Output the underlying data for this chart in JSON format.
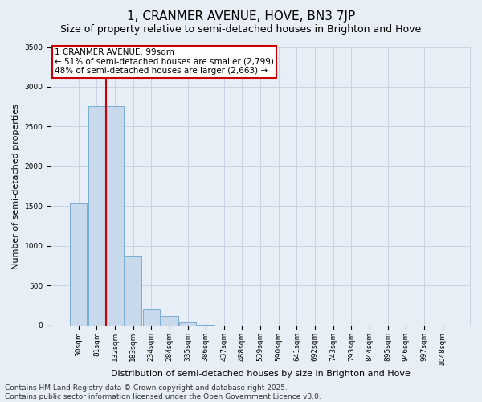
{
  "title": "1, CRANMER AVENUE, HOVE, BN3 7JP",
  "subtitle": "Size of property relative to semi-detached houses in Brighton and Hove",
  "xlabel": "Distribution of semi-detached houses by size in Brighton and Hove",
  "ylabel": "Number of semi-detached properties",
  "categories": [
    "30sqm",
    "81sqm",
    "132sqm",
    "183sqm",
    "234sqm",
    "284sqm",
    "335sqm",
    "386sqm",
    "437sqm",
    "488sqm",
    "539sqm",
    "590sqm",
    "641sqm",
    "692sqm",
    "743sqm",
    "793sqm",
    "844sqm",
    "895sqm",
    "946sqm",
    "997sqm",
    "1048sqm"
  ],
  "values": [
    1530,
    2760,
    2760,
    870,
    210,
    120,
    40,
    8,
    3,
    1,
    0,
    0,
    0,
    0,
    0,
    0,
    0,
    0,
    0,
    0,
    0
  ],
  "bar_color": "#c8d9eb",
  "bar_edge_color": "#7aadd4",
  "grid_color": "#c8d4e3",
  "background_color": "#e8eef5",
  "annotation_text": "1 CRANMER AVENUE: 99sqm\n← 51% of semi-detached houses are smaller (2,799)\n48% of semi-detached houses are larger (2,663) →",
  "vline_color": "#cc0000",
  "annotation_box_facecolor": "#ffffff",
  "annotation_box_edgecolor": "#cc0000",
  "footer_text": "Contains HM Land Registry data © Crown copyright and database right 2025.\nContains public sector information licensed under the Open Government Licence v3.0.",
  "ylim": [
    0,
    3500
  ],
  "yticks": [
    0,
    500,
    1000,
    1500,
    2000,
    2500,
    3000,
    3500
  ],
  "title_fontsize": 11,
  "subtitle_fontsize": 9,
  "xlabel_fontsize": 8,
  "ylabel_fontsize": 8,
  "tick_fontsize": 6.5,
  "annotation_fontsize": 7.5,
  "footer_fontsize": 6.5
}
